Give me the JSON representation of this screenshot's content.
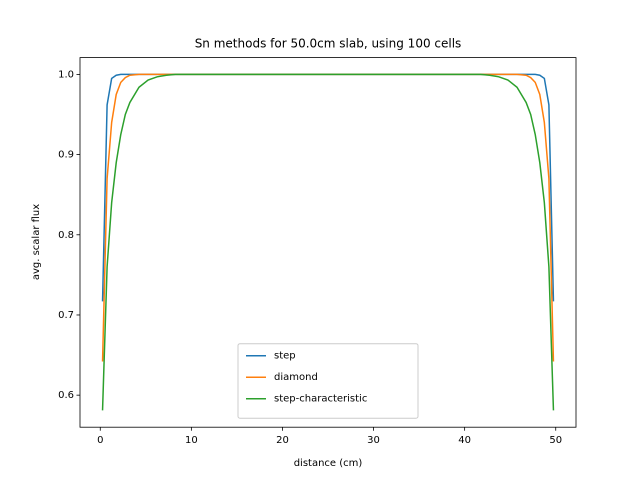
{
  "chart_data": {
    "type": "line",
    "title": "Sn methods for 50.0cm slab, using 100 cells",
    "xlabel": "distance (cm)",
    "ylabel": "avg. scalar flux",
    "x": [
      0.25,
      0.75,
      1.25,
      1.75,
      2.25,
      2.75,
      3.25,
      4.25,
      5.25,
      6.25,
      7.25,
      8.25,
      25,
      41.75,
      42.75,
      43.75,
      44.75,
      45.75,
      46.75,
      47.25,
      47.75,
      48.25,
      48.75,
      49.25,
      49.75
    ],
    "series": [
      {
        "name": "step",
        "color": "#1f77b4",
        "values": [
          0.717,
          0.962,
          0.995,
          0.999,
          1,
          1,
          1,
          1,
          1,
          1,
          1,
          1,
          1,
          1,
          1,
          1,
          1,
          1,
          1,
          1,
          1,
          0.999,
          0.995,
          0.962,
          0.717
        ]
      },
      {
        "name": "diamond",
        "color": "#ff7f0e",
        "values": [
          0.642,
          0.87,
          0.94,
          0.975,
          0.99,
          0.996,
          0.999,
          1,
          1,
          1,
          1,
          1,
          1,
          1,
          1,
          1,
          1,
          1,
          0.999,
          0.996,
          0.99,
          0.975,
          0.94,
          0.87,
          0.642
        ]
      },
      {
        "name": "step-characteristic",
        "color": "#2ca02c",
        "values": [
          0.581,
          0.76,
          0.84,
          0.89,
          0.925,
          0.95,
          0.965,
          0.984,
          0.993,
          0.997,
          0.999,
          1,
          1,
          1,
          0.999,
          0.997,
          0.993,
          0.984,
          0.965,
          0.95,
          0.925,
          0.89,
          0.84,
          0.76,
          0.581
        ]
      }
    ],
    "xlim": [
      -2.225,
      52.225
    ],
    "xticks": [
      0,
      10,
      20,
      30,
      40,
      50
    ],
    "ylim": [
      0.56005,
      1.02095
    ],
    "yticks": [
      0.6,
      0.7,
      0.8,
      0.9,
      {
        "value": 1,
        "label": "1.0"
      }
    ],
    "legend": "lower center"
  }
}
